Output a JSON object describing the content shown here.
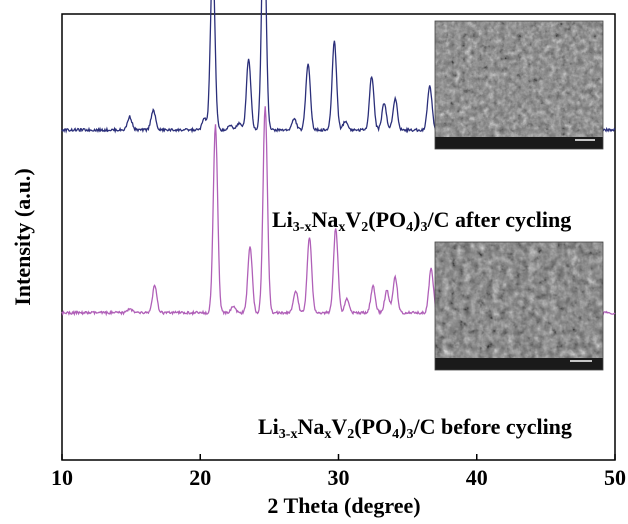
{
  "chart_data": {
    "type": "line",
    "title": "",
    "xlabel": "2 Theta (degree)",
    "ylabel": "Intensity (a.u.)",
    "xlim": [
      10,
      50
    ],
    "xticks": [
      10,
      20,
      30,
      40,
      50
    ],
    "y_ticks_shown": false,
    "grid": false,
    "legend": "none",
    "baseline_after": 0.74,
    "baseline_before": 0.33,
    "series": [
      {
        "name": "",
        "color": "#2b2f7a",
        "annotation": {
          "parts": [
            {
              "t": "Li",
              "s": "n"
            },
            {
              "t": "3-x",
              "s": "b"
            },
            {
              "t": "Na",
              "s": "n"
            },
            {
              "t": "x",
              "s": "b"
            },
            {
              "t": "V",
              "s": "n"
            },
            {
              "t": "2",
              "s": "b"
            },
            {
              "t": "(PO",
              "s": "n"
            },
            {
              "t": "4",
              "s": "b"
            },
            {
              "t": ")",
              "s": "n"
            },
            {
              "t": "3",
              "s": "b"
            },
            {
              "t": "/C after cycling",
              "s": "n"
            }
          ]
        },
        "peaks": [
          {
            "x": 14.9,
            "h": 0.03
          },
          {
            "x": 16.6,
            "h": 0.045
          },
          {
            "x": 20.3,
            "h": 0.025
          },
          {
            "x": 20.9,
            "h": 0.38
          },
          {
            "x": 22.2,
            "h": 0.01
          },
          {
            "x": 22.8,
            "h": 0.015
          },
          {
            "x": 23.5,
            "h": 0.16
          },
          {
            "x": 24.6,
            "h": 0.5
          },
          {
            "x": 26.8,
            "h": 0.025
          },
          {
            "x": 27.8,
            "h": 0.15
          },
          {
            "x": 29.7,
            "h": 0.2
          },
          {
            "x": 30.5,
            "h": 0.02
          },
          {
            "x": 32.4,
            "h": 0.12
          },
          {
            "x": 33.3,
            "h": 0.06
          },
          {
            "x": 34.1,
            "h": 0.07
          },
          {
            "x": 36.6,
            "h": 0.1
          },
          {
            "x": 38.9,
            "h": 0.01
          },
          {
            "x": 42.2,
            "h": 0.01
          },
          {
            "x": 44.2,
            "h": 0.04
          },
          {
            "x": 47.4,
            "h": 0.03
          },
          {
            "x": 48.0,
            "h": 0.055
          }
        ]
      },
      {
        "name": "",
        "color": "#b060b8",
        "annotation": {
          "parts": [
            {
              "t": "Li",
              "s": "n"
            },
            {
              "t": "3-x",
              "s": "b"
            },
            {
              "t": "Na",
              "s": "n"
            },
            {
              "t": "x",
              "s": "b"
            },
            {
              "t": "V",
              "s": "n"
            },
            {
              "t": "2",
              "s": "b"
            },
            {
              "t": "(PO",
              "s": "n"
            },
            {
              "t": "4",
              "s": "b"
            },
            {
              "t": ")",
              "s": "n"
            },
            {
              "t": "3",
              "s": "b"
            },
            {
              "t": "/C before cycling",
              "s": "n"
            }
          ]
        },
        "peaks": [
          {
            "x": 14.9,
            "h": 0.01
          },
          {
            "x": 16.7,
            "h": 0.06
          },
          {
            "x": 21.1,
            "h": 0.42
          },
          {
            "x": 22.4,
            "h": 0.015
          },
          {
            "x": 23.6,
            "h": 0.15
          },
          {
            "x": 24.7,
            "h": 0.46
          },
          {
            "x": 26.9,
            "h": 0.05
          },
          {
            "x": 27.9,
            "h": 0.17
          },
          {
            "x": 29.8,
            "h": 0.19
          },
          {
            "x": 30.6,
            "h": 0.03
          },
          {
            "x": 32.5,
            "h": 0.06
          },
          {
            "x": 33.5,
            "h": 0.05
          },
          {
            "x": 34.1,
            "h": 0.08
          },
          {
            "x": 36.7,
            "h": 0.1
          },
          {
            "x": 39.0,
            "h": 0.01
          },
          {
            "x": 44.3,
            "h": 0.04
          },
          {
            "x": 47.5,
            "h": 0.06
          },
          {
            "x": 48.1,
            "h": 0.07
          }
        ]
      }
    ],
    "insets": [
      {
        "kind": "SEM image after cycling",
        "tone": "#7a7a7a"
      },
      {
        "kind": "SEM image before cycling",
        "tone": "#6e6e6e"
      }
    ]
  }
}
